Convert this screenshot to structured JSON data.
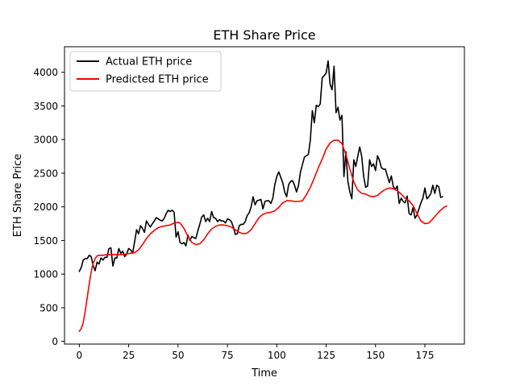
{
  "chart_data": {
    "type": "line",
    "title": "ETH Share Price",
    "xlabel": "Time",
    "ylabel": "ETH Share Price",
    "xlim": [
      -7.5,
      195
    ],
    "ylim": [
      -40,
      4380
    ],
    "xticks": [
      0,
      25,
      50,
      75,
      100,
      125,
      150,
      175
    ],
    "yticks": [
      0,
      500,
      1000,
      1500,
      2000,
      2500,
      3000,
      3500,
      4000
    ],
    "grid": false,
    "legend_position": "top-left",
    "series": [
      {
        "name": "Actual ETH price",
        "color": "#000000",
        "points": [
          [
            0,
            1040
          ],
          [
            1,
            1100
          ],
          [
            2,
            1210
          ],
          [
            3,
            1230
          ],
          [
            4,
            1230
          ],
          [
            5,
            1280
          ],
          [
            6,
            1260
          ],
          [
            7,
            1130
          ],
          [
            8,
            1050
          ],
          [
            9,
            1180
          ],
          [
            10,
            1150
          ],
          [
            11,
            1240
          ],
          [
            12,
            1210
          ],
          [
            13,
            1250
          ],
          [
            14,
            1250
          ],
          [
            15,
            1380
          ],
          [
            16,
            1390
          ],
          [
            17,
            1120
          ],
          [
            18,
            1240
          ],
          [
            19,
            1240
          ],
          [
            20,
            1380
          ],
          [
            21,
            1310
          ],
          [
            22,
            1340
          ],
          [
            23,
            1260
          ],
          [
            24,
            1300
          ],
          [
            25,
            1380
          ],
          [
            26,
            1360
          ],
          [
            27,
            1310
          ],
          [
            28,
            1480
          ],
          [
            29,
            1660
          ],
          [
            30,
            1600
          ],
          [
            31,
            1720
          ],
          [
            32,
            1680
          ],
          [
            33,
            1620
          ],
          [
            34,
            1790
          ],
          [
            35,
            1740
          ],
          [
            36,
            1700
          ],
          [
            37,
            1750
          ],
          [
            38,
            1790
          ],
          [
            39,
            1840
          ],
          [
            40,
            1820
          ],
          [
            41,
            1800
          ],
          [
            42,
            1790
          ],
          [
            43,
            1830
          ],
          [
            44,
            1900
          ],
          [
            45,
            1950
          ],
          [
            46,
            1930
          ],
          [
            47,
            1950
          ],
          [
            48,
            1920
          ],
          [
            49,
            1550
          ],
          [
            50,
            1630
          ],
          [
            51,
            1470
          ],
          [
            52,
            1450
          ],
          [
            53,
            1470
          ],
          [
            54,
            1420
          ],
          [
            55,
            1580
          ],
          [
            56,
            1500
          ],
          [
            57,
            1560
          ],
          [
            58,
            1540
          ],
          [
            59,
            1530
          ],
          [
            60,
            1640
          ],
          [
            61,
            1740
          ],
          [
            62,
            1850
          ],
          [
            63,
            1880
          ],
          [
            64,
            1780
          ],
          [
            65,
            1830
          ],
          [
            66,
            1780
          ],
          [
            67,
            1930
          ],
          [
            68,
            1840
          ],
          [
            69,
            1830
          ],
          [
            70,
            1780
          ],
          [
            71,
            1810
          ],
          [
            72,
            1790
          ],
          [
            73,
            1790
          ],
          [
            74,
            1760
          ],
          [
            75,
            1820
          ],
          [
            76,
            1810
          ],
          [
            77,
            1780
          ],
          [
            78,
            1700
          ],
          [
            79,
            1590
          ],
          [
            80,
            1600
          ],
          [
            81,
            1720
          ],
          [
            82,
            1740
          ],
          [
            83,
            1740
          ],
          [
            84,
            1780
          ],
          [
            85,
            1870
          ],
          [
            86,
            1910
          ],
          [
            87,
            2000
          ],
          [
            88,
            2150
          ],
          [
            89,
            2030
          ],
          [
            90,
            2090
          ],
          [
            91,
            2100
          ],
          [
            92,
            2110
          ],
          [
            93,
            1970
          ],
          [
            94,
            2080
          ],
          [
            95,
            2090
          ],
          [
            96,
            2090
          ],
          [
            97,
            2050
          ],
          [
            98,
            2130
          ],
          [
            99,
            2330
          ],
          [
            100,
            2450
          ],
          [
            101,
            2520
          ],
          [
            102,
            2440
          ],
          [
            103,
            2360
          ],
          [
            104,
            2220
          ],
          [
            105,
            2150
          ],
          [
            106,
            2330
          ],
          [
            107,
            2380
          ],
          [
            108,
            2390
          ],
          [
            109,
            2320
          ],
          [
            110,
            2220
          ],
          [
            111,
            2320
          ],
          [
            112,
            2520
          ],
          [
            113,
            2630
          ],
          [
            114,
            2740
          ],
          [
            115,
            2760
          ],
          [
            116,
            2780
          ],
          [
            117,
            3000
          ],
          [
            118,
            3430
          ],
          [
            119,
            3250
          ],
          [
            120,
            3510
          ],
          [
            121,
            3490
          ],
          [
            122,
            3530
          ],
          [
            123,
            3920
          ],
          [
            124,
            3950
          ],
          [
            125,
            3990
          ],
          [
            126,
            4170
          ],
          [
            127,
            3820
          ],
          [
            128,
            3740
          ],
          [
            129,
            4090
          ],
          [
            130,
            3400
          ],
          [
            131,
            3480
          ],
          [
            132,
            3290
          ],
          [
            133,
            3360
          ],
          [
            134,
            2450
          ],
          [
            135,
            2820
          ],
          [
            136,
            2380
          ],
          [
            137,
            2220
          ],
          [
            138,
            2120
          ],
          [
            139,
            2700
          ],
          [
            140,
            2600
          ],
          [
            141,
            2750
          ],
          [
            142,
            2890
          ],
          [
            143,
            2750
          ],
          [
            144,
            2450
          ],
          [
            145,
            2290
          ],
          [
            146,
            2310
          ],
          [
            147,
            2700
          ],
          [
            148,
            2600
          ],
          [
            149,
            2640
          ],
          [
            150,
            2540
          ],
          [
            151,
            2760
          ],
          [
            152,
            2690
          ],
          [
            153,
            2580
          ],
          [
            154,
            2560
          ],
          [
            155,
            2560
          ],
          [
            156,
            2460
          ],
          [
            157,
            2360
          ],
          [
            158,
            2460
          ],
          [
            159,
            2300
          ],
          [
            160,
            2260
          ],
          [
            161,
            2310
          ],
          [
            162,
            2050
          ],
          [
            163,
            2130
          ],
          [
            164,
            2080
          ],
          [
            165,
            2060
          ],
          [
            166,
            2160
          ],
          [
            167,
            1900
          ],
          [
            168,
            1880
          ],
          [
            169,
            1990
          ],
          [
            170,
            1830
          ],
          [
            171,
            1880
          ],
          [
            172,
            1970
          ],
          [
            173,
            2060
          ],
          [
            174,
            2130
          ],
          [
            175,
            2280
          ],
          [
            176,
            2120
          ],
          [
            177,
            2150
          ],
          [
            178,
            2200
          ],
          [
            179,
            2320
          ],
          [
            180,
            2200
          ],
          [
            181,
            2320
          ],
          [
            182,
            2300
          ],
          [
            183,
            2140
          ],
          [
            184,
            2150
          ]
        ]
      },
      {
        "name": "Predicted ETH price",
        "color": "#ff0000",
        "points": [
          [
            0,
            150
          ],
          [
            1,
            190
          ],
          [
            2,
            280
          ],
          [
            3,
            450
          ],
          [
            4,
            650
          ],
          [
            5,
            850
          ],
          [
            6,
            1030
          ],
          [
            7,
            1160
          ],
          [
            8,
            1230
          ],
          [
            9,
            1270
          ],
          [
            10,
            1280
          ],
          [
            12,
            1280
          ],
          [
            14,
            1290
          ],
          [
            16,
            1290
          ],
          [
            18,
            1290
          ],
          [
            20,
            1290
          ],
          [
            22,
            1290
          ],
          [
            24,
            1300
          ],
          [
            26,
            1310
          ],
          [
            28,
            1320
          ],
          [
            30,
            1360
          ],
          [
            32,
            1440
          ],
          [
            34,
            1530
          ],
          [
            36,
            1600
          ],
          [
            38,
            1650
          ],
          [
            40,
            1690
          ],
          [
            42,
            1710
          ],
          [
            44,
            1720
          ],
          [
            46,
            1730
          ],
          [
            48,
            1760
          ],
          [
            50,
            1770
          ],
          [
            51,
            1760
          ],
          [
            53,
            1680
          ],
          [
            55,
            1560
          ],
          [
            57,
            1470
          ],
          [
            59,
            1440
          ],
          [
            61,
            1450
          ],
          [
            63,
            1510
          ],
          [
            65,
            1600
          ],
          [
            67,
            1670
          ],
          [
            69,
            1710
          ],
          [
            71,
            1730
          ],
          [
            73,
            1730
          ],
          [
            75,
            1720
          ],
          [
            77,
            1700
          ],
          [
            79,
            1660
          ],
          [
            81,
            1620
          ],
          [
            83,
            1600
          ],
          [
            85,
            1610
          ],
          [
            87,
            1660
          ],
          [
            89,
            1750
          ],
          [
            91,
            1840
          ],
          [
            93,
            1890
          ],
          [
            95,
            1910
          ],
          [
            97,
            1920
          ],
          [
            99,
            1940
          ],
          [
            101,
            1990
          ],
          [
            103,
            2060
          ],
          [
            105,
            2090
          ],
          [
            107,
            2090
          ],
          [
            109,
            2080
          ],
          [
            111,
            2080
          ],
          [
            113,
            2090
          ],
          [
            115,
            2180
          ],
          [
            117,
            2290
          ],
          [
            119,
            2430
          ],
          [
            121,
            2580
          ],
          [
            123,
            2710
          ],
          [
            125,
            2860
          ],
          [
            127,
            2950
          ],
          [
            129,
            2990
          ],
          [
            131,
            2990
          ],
          [
            133,
            2940
          ],
          [
            135,
            2780
          ],
          [
            137,
            2560
          ],
          [
            139,
            2370
          ],
          [
            141,
            2250
          ],
          [
            143,
            2200
          ],
          [
            145,
            2190
          ],
          [
            147,
            2160
          ],
          [
            149,
            2150
          ],
          [
            151,
            2170
          ],
          [
            153,
            2220
          ],
          [
            155,
            2260
          ],
          [
            157,
            2280
          ],
          [
            159,
            2270
          ],
          [
            161,
            2240
          ],
          [
            163,
            2190
          ],
          [
            165,
            2130
          ],
          [
            167,
            2090
          ],
          [
            169,
            2020
          ],
          [
            171,
            1900
          ],
          [
            173,
            1790
          ],
          [
            175,
            1750
          ],
          [
            177,
            1760
          ],
          [
            179,
            1820
          ],
          [
            181,
            1890
          ],
          [
            183,
            1950
          ],
          [
            185,
            2000
          ],
          [
            186,
            2010
          ]
        ]
      }
    ]
  }
}
